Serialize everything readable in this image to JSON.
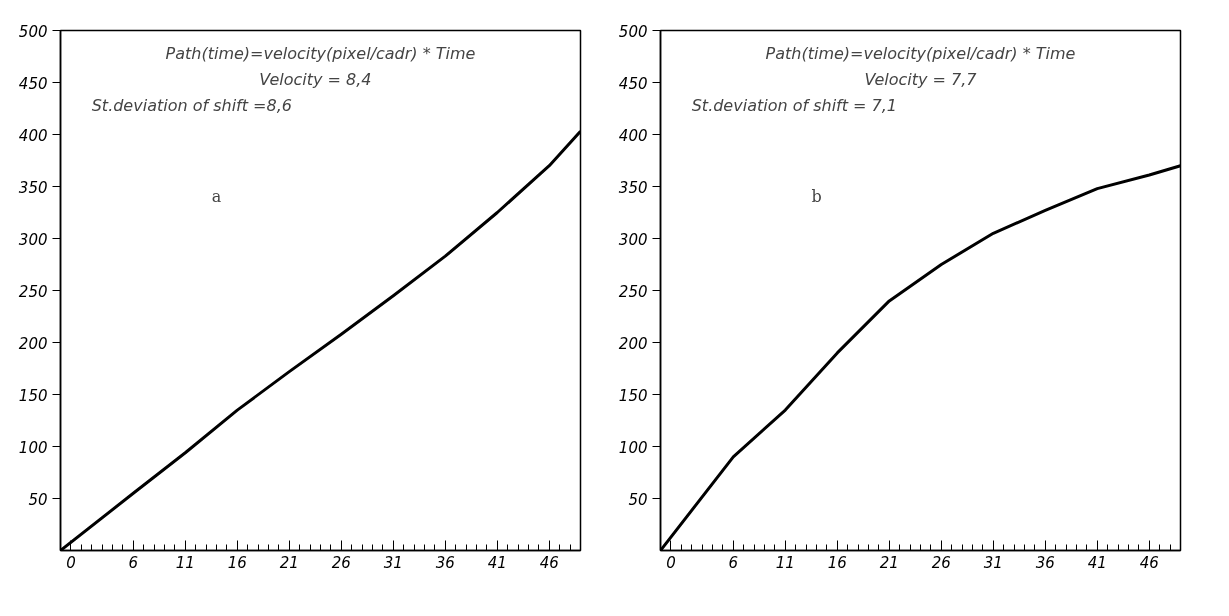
{
  "chart_data": [
    {
      "type": "line",
      "x": [
        -1,
        6,
        11,
        16,
        21,
        26,
        31,
        36,
        41,
        46,
        49
      ],
      "values": [
        0,
        55,
        94,
        135,
        172,
        208,
        245,
        283,
        325,
        370,
        403
      ],
      "color": "#000000",
      "xlim": [
        -1,
        49
      ],
      "xticks": [
        0,
        6,
        11,
        16,
        21,
        26,
        31,
        36,
        41,
        46
      ],
      "ylim": [
        0,
        500
      ],
      "yticks": [
        50,
        100,
        150,
        200,
        250,
        300,
        350,
        400,
        450,
        500
      ],
      "grid": false,
      "annotations": [
        "Path(time)=velocity(pixel/cadr) * Time",
        "Velocity  =  8,4",
        "St.deviation of shift =8,6",
        "a"
      ]
    },
    {
      "type": "line",
      "x": [
        -1,
        6,
        11,
        16,
        21,
        26,
        31,
        36,
        41,
        46,
        49
      ],
      "values": [
        0,
        90,
        135,
        190,
        240,
        275,
        305,
        327,
        348,
        361,
        370
      ],
      "color": "#000000",
      "xlim": [
        -1,
        49
      ],
      "xticks": [
        0,
        6,
        11,
        16,
        21,
        26,
        31,
        36,
        41,
        46
      ],
      "ylim": [
        0,
        500
      ],
      "yticks": [
        50,
        100,
        150,
        200,
        250,
        300,
        350,
        400,
        450,
        500
      ],
      "grid": false,
      "annotations": [
        "Path(time)=velocity(pixel/cadr) * Time",
        "Velocity = 7,7",
        "St.deviation of shift = 7,1",
        "b"
      ]
    }
  ]
}
